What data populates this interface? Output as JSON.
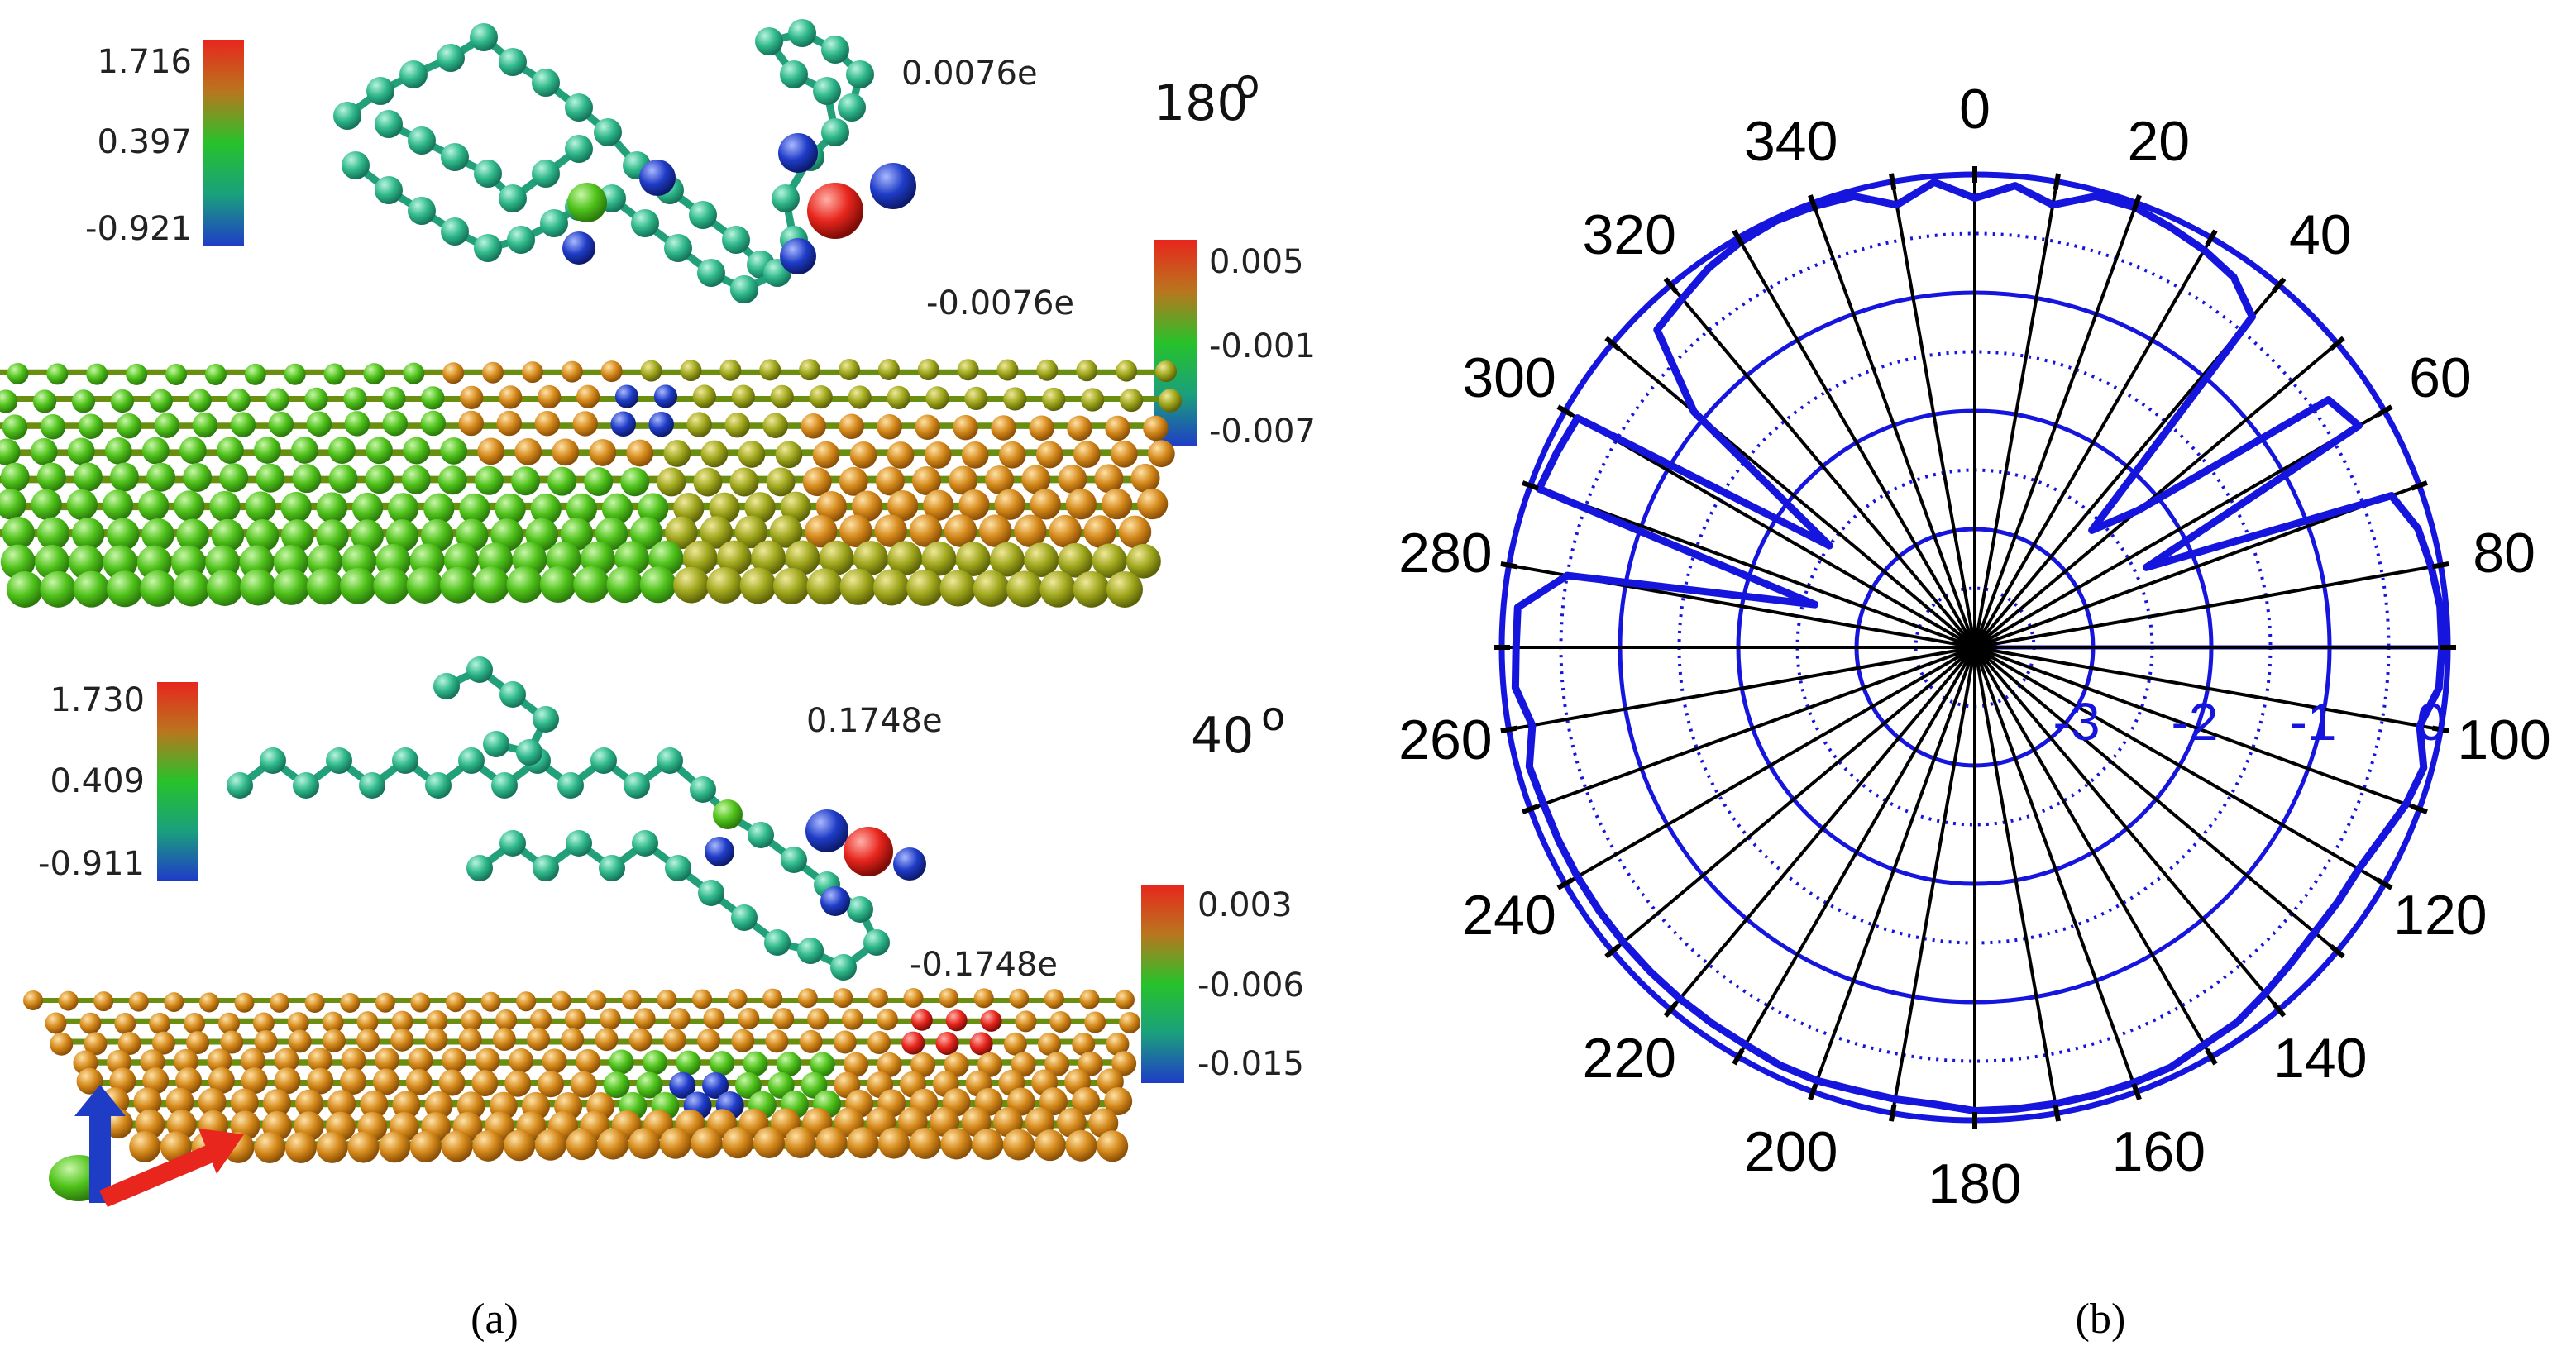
{
  "panel_a": {
    "label": "(a)",
    "top_view": {
      "angle_label": "180",
      "angle_symbol": "o",
      "molecule_charge": "0.0076e",
      "surface_charge": "-0.0076e",
      "molecule_scale": [
        "1.716",
        "0.397",
        "-0.921"
      ],
      "surface_scale": [
        "0.005",
        "-0.001",
        "-0.007"
      ]
    },
    "bottom_view": {
      "angle_label": "40",
      "angle_symbol": "o",
      "molecule_charge": "0.1748e",
      "surface_charge": "-0.1748e",
      "molecule_scale": [
        "1.730",
        "0.409",
        "-0.911"
      ],
      "surface_scale": [
        "0.003",
        "-0.006",
        "-0.015"
      ]
    },
    "colors": {
      "scale_high": "#e8261d",
      "scale_mid": "#27c22b",
      "scale_low": "#1f3cc7",
      "molecule_atom": "#2fb88a",
      "sheet_green": "#4fc21a",
      "sheet_orange": "#d5891a"
    },
    "axes_icon": [
      "blue-arrow",
      "red-arrow",
      "green-arrow"
    ]
  },
  "panel_b": {
    "label": "(b)",
    "colors": {
      "series": "#1515dd",
      "spokes": "#000000"
    }
  },
  "chart_data": {
    "type": "polar-line",
    "theta_unit": "degrees",
    "theta_direction": "clockwise",
    "theta_zero": "top",
    "angle_ticks": [
      0,
      20,
      40,
      60,
      80,
      100,
      120,
      140,
      160,
      180,
      200,
      220,
      240,
      260,
      280,
      300,
      320,
      340
    ],
    "angle_tick_labels": [
      "0",
      "20",
      "40",
      "60",
      "80",
      "100",
      "120",
      "140",
      "160",
      "180",
      "200",
      "220",
      "240",
      "260",
      "280",
      "300",
      "320",
      "340"
    ],
    "radial_ticks": [
      -3,
      -2,
      -1,
      0
    ],
    "radial_tick_labels": [
      "-3",
      "-2",
      "-1",
      "0"
    ],
    "radial_range": [
      -4,
      0
    ],
    "series": [
      {
        "theta": [
          0,
          5,
          10,
          15,
          20,
          25,
          30,
          35,
          40,
          45,
          50,
          55,
          60,
          65,
          70,
          75,
          80,
          85,
          90,
          95,
          100,
          105,
          110,
          115,
          120,
          125,
          130,
          135,
          140,
          145,
          150,
          155,
          160,
          165,
          170,
          175,
          180,
          185,
          190,
          195,
          200,
          205,
          210,
          215,
          220,
          225,
          230,
          235,
          240,
          245,
          250,
          255,
          260,
          265,
          270,
          275,
          280,
          285,
          290,
          295,
          300,
          305,
          310,
          315,
          320,
          325,
          330,
          335,
          340,
          345,
          350,
          355,
          360
        ],
        "r": [
          -0.2,
          -0.08,
          -0.2,
          -0.05,
          -0.04,
          -0.08,
          -0.12,
          -0.18,
          -0.35,
          -2.6,
          -2.2,
          -0.35,
          -0.25,
          -2.4,
          -0.25,
          -0.12,
          -0.08,
          -0.05,
          -0.05,
          -0.06,
          -0.18,
          -0.07,
          -0.12,
          -0.2,
          -0.25,
          -0.25,
          -0.25,
          -0.22,
          -0.18,
          -0.13,
          -0.12,
          -0.08,
          -0.08,
          -0.08,
          -0.08,
          -0.08,
          -0.08,
          -0.12,
          -0.12,
          -0.12,
          -0.1,
          -0.1,
          -0.12,
          -0.12,
          -0.12,
          -0.12,
          -0.12,
          -0.12,
          -0.12,
          -0.12,
          -0.12,
          -0.1,
          -0.2,
          -0.1,
          -0.12,
          -0.12,
          -0.5,
          -2.6,
          -0.08,
          -0.1,
          -0.12,
          -2.5,
          -0.9,
          -0.2,
          -0.15,
          -0.08,
          -0.04,
          -0.02,
          -0.03,
          -0.05,
          -0.2,
          -0.05,
          -0.2
        ]
      }
    ],
    "grid": true
  }
}
